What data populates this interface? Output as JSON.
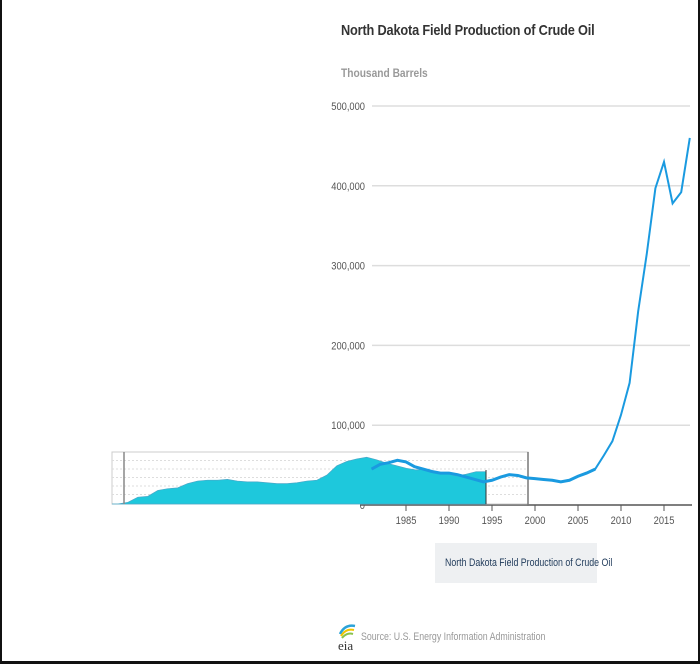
{
  "chart_data": {
    "type": "line",
    "title": "North Dakota Field Production of Crude Oil",
    "subtitle": "Thousand Barrels",
    "xlabel": "",
    "ylabel": "Thousand Barrels",
    "ylim": [
      0,
      500000
    ],
    "xlim": [
      1981,
      2018
    ],
    "yticks": [
      "0",
      "100,000",
      "200,000",
      "300,000",
      "400,000",
      "500,000"
    ],
    "ytick_values": [
      0,
      100000,
      200000,
      300000,
      400000,
      500000
    ],
    "xticks": [
      "1985",
      "1990",
      "1995",
      "2000",
      "2005",
      "2010",
      "2015"
    ],
    "xtick_values": [
      1985,
      1990,
      1995,
      2000,
      2005,
      2010,
      2015
    ],
    "grid": true,
    "legend_position": "bottom",
    "series": [
      {
        "name": "North Dakota Field Production of Crude Oil",
        "color": "#1a9ae0",
        "x": [
          1981,
          1982,
          1983,
          1984,
          1985,
          1986,
          1987,
          1988,
          1989,
          1990,
          1991,
          1992,
          1993,
          1994,
          1995,
          1996,
          1997,
          1998,
          1999,
          2000,
          2001,
          2002,
          2003,
          2004,
          2005,
          2006,
          2007,
          2008,
          2009,
          2010,
          2011,
          2012,
          2013,
          2014,
          2015,
          2016,
          2017,
          2018
        ],
        "values": [
          45000,
          51000,
          53000,
          56000,
          54000,
          48000,
          45000,
          42000,
          40000,
          40000,
          38000,
          35000,
          32000,
          29000,
          31000,
          35000,
          38000,
          37000,
          34000,
          33000,
          32000,
          31000,
          29000,
          31000,
          36000,
          40000,
          45000,
          62000,
          80000,
          113000,
          153000,
          243000,
          315000,
          397000,
          430000,
          378000,
          392000,
          460000
        ]
      }
    ],
    "navigator": {
      "fill_color": "#1ec8dc",
      "selected_range": [
        1981,
        1998
      ]
    }
  },
  "source": "Source: U.S. Energy Information Administration",
  "logo_text": "eia"
}
